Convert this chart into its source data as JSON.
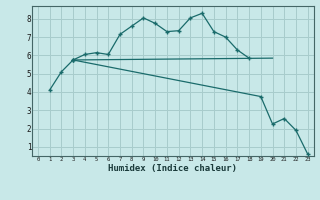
{
  "xlabel": "Humidex (Indice chaleur)",
  "background_color": "#c8e8e8",
  "grid_color": "#a8cccc",
  "line_color": "#1a6b6b",
  "xlim": [
    -0.5,
    23.5
  ],
  "ylim": [
    0.5,
    8.7
  ],
  "xticks": [
    0,
    1,
    2,
    3,
    4,
    5,
    6,
    7,
    8,
    9,
    10,
    11,
    12,
    13,
    14,
    15,
    16,
    17,
    18,
    19,
    20,
    21,
    22,
    23
  ],
  "yticks": [
    1,
    2,
    3,
    4,
    5,
    6,
    7,
    8
  ],
  "line1_x": [
    1,
    2,
    3
  ],
  "line1_y": [
    4.1,
    5.1,
    5.75
  ],
  "line2_x": [
    3,
    4,
    5,
    6,
    7,
    8,
    9,
    10,
    11,
    12,
    13,
    14,
    15,
    16,
    17,
    18
  ],
  "line2_y": [
    5.75,
    6.05,
    6.15,
    6.05,
    7.15,
    7.6,
    8.05,
    7.75,
    7.3,
    7.35,
    8.05,
    8.3,
    7.3,
    7.0,
    6.3,
    5.85
  ],
  "line3_x": [
    3,
    20
  ],
  "line3_y": [
    5.75,
    5.85
  ],
  "line4_x": [
    3,
    19,
    20,
    21,
    22,
    23
  ],
  "line4_y": [
    5.75,
    3.75,
    2.25,
    2.55,
    1.9,
    0.6
  ]
}
